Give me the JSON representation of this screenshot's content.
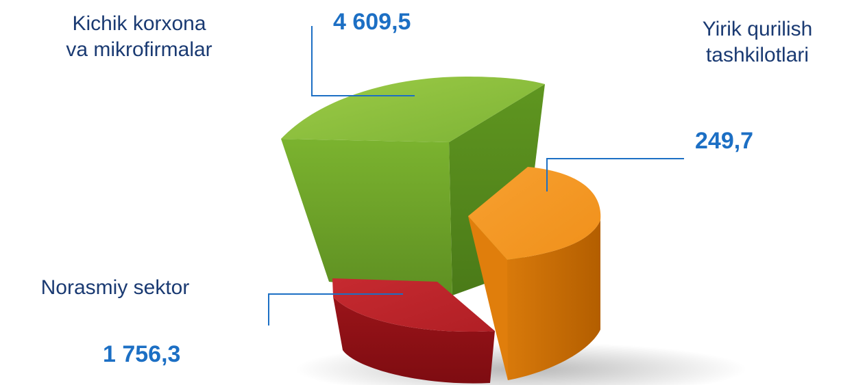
{
  "chart_data": {
    "type": "pie",
    "slices": [
      {
        "label": "Kichik korxona\nva mikrofirmalar",
        "value": 4609.5,
        "value_label": "4 609,5",
        "color": "#7db336"
      },
      {
        "label": "Yirik qurilish\ntashkilotlari",
        "value": 249.7,
        "value_label": "249,7",
        "color": "#f5921e"
      },
      {
        "label": "Norasmiy sektor",
        "value": 1756.3,
        "value_label": "1 756,3",
        "color": "#c1272d"
      }
    ],
    "leader_color": "#1c6fc4"
  }
}
